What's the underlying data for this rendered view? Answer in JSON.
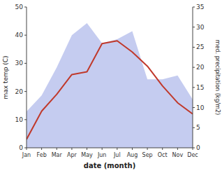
{
  "chart_data": {
    "type": "line",
    "xlabel": "date (month)",
    "ylabel": "max temp (C)",
    "y2label": "med. precipitation (kg/m2)",
    "categories": [
      "Jan",
      "Feb",
      "Mar",
      "Apr",
      "May",
      "Jun",
      "Jul",
      "Aug",
      "Sep",
      "Oct",
      "Nov",
      "Dec"
    ],
    "series": [
      {
        "type": "line",
        "color": "#c0392b",
        "values": [
          3,
          13,
          19,
          26,
          27,
          37,
          38,
          34,
          29,
          22,
          16,
          12
        ]
      },
      {
        "type": "area",
        "color": "#c5ccf0",
        "axis": "y2",
        "values": [
          9,
          13,
          20,
          28,
          31,
          26,
          27,
          29,
          17,
          17,
          18,
          12
        ]
      }
    ],
    "ylim": [
      0,
      50
    ],
    "yticks": [
      0,
      10,
      20,
      30,
      40,
      50
    ],
    "y2lim": [
      0,
      35
    ],
    "y2ticks": [
      0,
      5,
      10,
      15,
      20,
      25,
      30,
      35
    ],
    "grid": false
  }
}
